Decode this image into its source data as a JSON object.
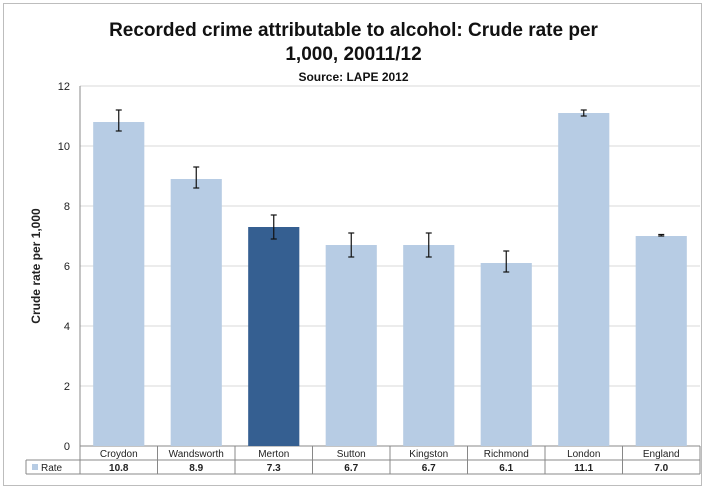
{
  "chart_data": {
    "type": "bar",
    "title_line1": "Recorded crime attributable to alcohol: Crude rate per",
    "title_line2": "1,000, 20011/12",
    "subtitle": "Source: LAPE 2012",
    "ylabel": "Crude rate per 1,000",
    "ylim": [
      0,
      12
    ],
    "yticks": [
      "0",
      "2",
      "4",
      "6",
      "8",
      "10",
      "12"
    ],
    "categories": [
      "Croydon",
      "Wandsworth",
      "Merton",
      "Sutton",
      "Kingston",
      "Richmond",
      "London",
      "England"
    ],
    "series": [
      {
        "name": "Rate",
        "values": [
          10.8,
          8.9,
          7.3,
          6.7,
          6.7,
          6.1,
          11.1,
          7.0
        ],
        "value_labels": [
          "10.8",
          "8.9",
          "7.3",
          "6.7",
          "6.7",
          "6.1",
          "11.1",
          "7.0"
        ],
        "error_low": [
          10.5,
          8.6,
          6.9,
          6.3,
          6.3,
          5.8,
          11.0,
          7.0
        ],
        "error_high": [
          11.2,
          9.3,
          7.7,
          7.1,
          7.1,
          6.5,
          11.2,
          7.05
        ]
      }
    ],
    "highlight_index": 2,
    "colors": {
      "bar": "#b7cce4",
      "highlight": "#355f91",
      "grid": "#d9d9d9"
    },
    "grid": true,
    "legend": "data-table-row"
  }
}
